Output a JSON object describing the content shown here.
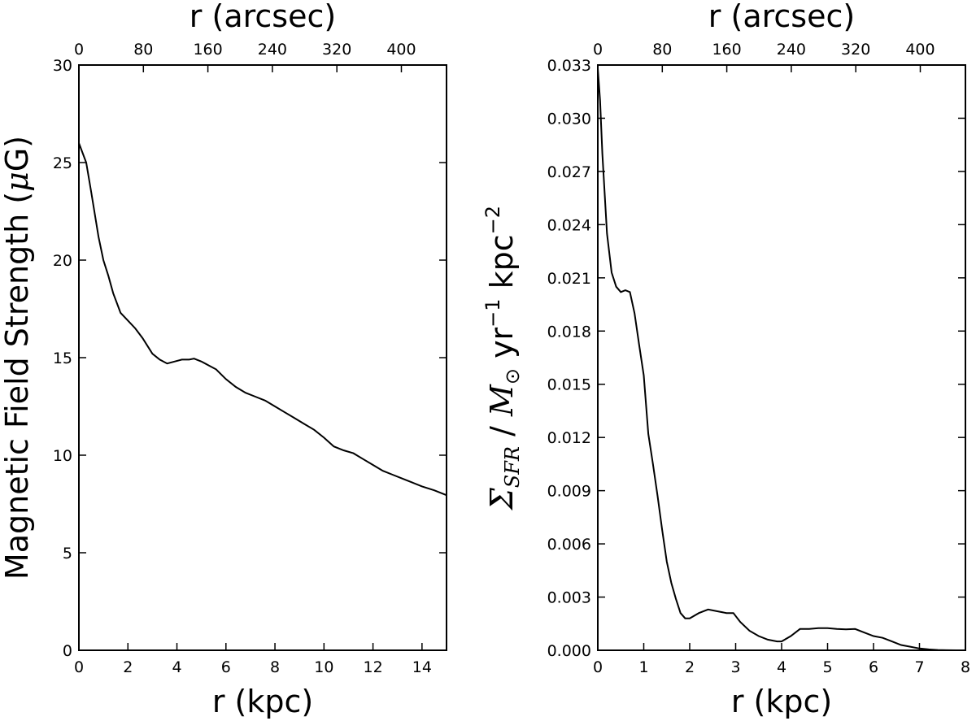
{
  "chart_data": [
    {
      "type": "line",
      "xlabel": "r (kpc)",
      "x2label": "r (arcsec)",
      "ylabel_parts": [
        "Magnetic Field Strength (",
        "μ",
        "G)"
      ],
      "xlim": [
        0,
        15
      ],
      "ylim": [
        0,
        30
      ],
      "xticks": [
        "0",
        "2",
        "4",
        "6",
        "8",
        "10",
        "12",
        "14"
      ],
      "x2ticks": [
        "0",
        "80",
        "160",
        "240",
        "320",
        "400"
      ],
      "x2_arcsec_per_kpc": 30.4,
      "yticks": [
        "0",
        "5",
        "10",
        "15",
        "20",
        "25",
        "30"
      ],
      "grid": false,
      "series": [
        {
          "color": "#000000",
          "x": [
            0,
            0.3,
            0.5,
            0.8,
            1.0,
            1.2,
            1.4,
            1.7,
            2.0,
            2.3,
            2.6,
            3.0,
            3.3,
            3.6,
            3.9,
            4.2,
            4.5,
            4.7,
            5.0,
            5.3,
            5.6,
            6.0,
            6.4,
            6.8,
            7.2,
            7.6,
            8.0,
            8.4,
            8.8,
            9.2,
            9.6,
            10.0,
            10.4,
            10.8,
            11.2,
            11.6,
            12.0,
            12.4,
            12.8,
            13.2,
            13.6,
            14.0,
            14.5,
            15.0
          ],
          "y": [
            26.0,
            25.0,
            23.5,
            21.2,
            20.0,
            19.2,
            18.3,
            17.3,
            16.9,
            16.5,
            16.0,
            15.2,
            14.9,
            14.7,
            14.8,
            14.9,
            14.9,
            14.95,
            14.8,
            14.6,
            14.4,
            13.9,
            13.5,
            13.2,
            13.0,
            12.8,
            12.5,
            12.2,
            11.9,
            11.6,
            11.3,
            10.9,
            10.45,
            10.25,
            10.1,
            9.8,
            9.5,
            9.2,
            9.0,
            8.8,
            8.6,
            8.4,
            8.2,
            7.95
          ]
        }
      ]
    },
    {
      "type": "line",
      "xlabel": "r (kpc)",
      "x2label": "r (arcsec)",
      "ylabel_parts": [
        "Σ",
        "SFR",
        " / ",
        "M",
        "⊙",
        " yr",
        "−1",
        " kpc",
        "−2"
      ],
      "xlim": [
        0,
        8
      ],
      "ylim": [
        0,
        0.033
      ],
      "xticks": [
        "0",
        "1",
        "2",
        "3",
        "4",
        "5",
        "6",
        "7",
        "8"
      ],
      "x2ticks": [
        "0",
        "80",
        "160",
        "240",
        "320",
        "400"
      ],
      "x2_arcsec_per_kpc": 57,
      "yticks": [
        "0.000",
        "0.003",
        "0.006",
        "0.009",
        "0.012",
        "0.015",
        "0.018",
        "0.021",
        "0.024",
        "0.027",
        "0.030",
        "0.033"
      ],
      "grid": false,
      "series": [
        {
          "color": "#000000",
          "x": [
            0,
            0.05,
            0.1,
            0.2,
            0.3,
            0.4,
            0.5,
            0.6,
            0.7,
            0.8,
            0.9,
            1.0,
            1.1,
            1.2,
            1.3,
            1.4,
            1.5,
            1.6,
            1.7,
            1.8,
            1.9,
            2.0,
            2.2,
            2.4,
            2.6,
            2.8,
            2.95,
            3.1,
            3.3,
            3.5,
            3.7,
            3.9,
            4.0,
            4.2,
            4.4,
            4.6,
            4.8,
            5.0,
            5.2,
            5.4,
            5.6,
            5.8,
            6.0,
            6.2,
            6.4,
            6.6,
            6.8,
            7.0,
            7.2,
            7.4,
            7.6,
            7.8,
            8.0
          ],
          "y": [
            0.0328,
            0.031,
            0.028,
            0.0235,
            0.0213,
            0.0205,
            0.0202,
            0.0203,
            0.0202,
            0.019,
            0.0172,
            0.0155,
            0.0122,
            0.0105,
            0.0087,
            0.0068,
            0.005,
            0.0038,
            0.0029,
            0.0021,
            0.0018,
            0.0018,
            0.0021,
            0.0023,
            0.0022,
            0.0021,
            0.0021,
            0.0016,
            0.0011,
            0.0008,
            0.0006,
            0.0005,
            0.0005,
            0.0008,
            0.0012,
            0.0012,
            0.00125,
            0.00125,
            0.0012,
            0.00118,
            0.0012,
            0.001,
            0.0008,
            0.0007,
            0.0005,
            0.0003,
            0.0002,
            0.0001,
            5e-05,
            2e-05,
            5e-06,
            0.0,
            0.0
          ]
        }
      ]
    }
  ]
}
